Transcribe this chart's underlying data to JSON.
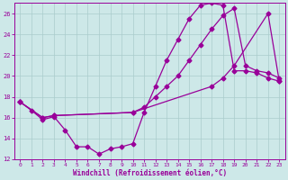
{
  "background_color": "#cde8e8",
  "grid_color": "#aacccc",
  "line_color": "#990099",
  "xlabel": "Windchill (Refroidissement éolien,°C)",
  "xlim": [
    -0.5,
    23.5
  ],
  "ylim": [
    12,
    27
  ],
  "xticks": [
    0,
    1,
    2,
    3,
    4,
    5,
    6,
    7,
    8,
    9,
    10,
    11,
    12,
    13,
    14,
    15,
    16,
    17,
    18,
    19,
    20,
    21,
    22,
    23
  ],
  "yticks": [
    12,
    14,
    16,
    18,
    20,
    22,
    24,
    26
  ],
  "line1_x": [
    0,
    1,
    2,
    3,
    4,
    5,
    6,
    7,
    8,
    9,
    10,
    11,
    12,
    13,
    14,
    15,
    16,
    17,
    18,
    19,
    20,
    21,
    22,
    23
  ],
  "line1_y": [
    17.5,
    16.7,
    15.8,
    16.1,
    14.8,
    13.2,
    13.2,
    12.5,
    13.0,
    13.2,
    13.5,
    16.5,
    19.0,
    21.5,
    23.5,
    25.5,
    26.8,
    27.0,
    26.8,
    20.5,
    20.5,
    20.3,
    19.8,
    19.5
  ],
  "line2_x": [
    0,
    2,
    3,
    10,
    11,
    12,
    13,
    14,
    15,
    16,
    17,
    18,
    19,
    20,
    21,
    22,
    23
  ],
  "line2_y": [
    17.5,
    16.0,
    16.2,
    16.5,
    17.0,
    18.0,
    19.0,
    20.0,
    21.5,
    23.0,
    24.5,
    25.8,
    26.5,
    21.0,
    20.5,
    20.3,
    19.8
  ],
  "line3_x": [
    0,
    2,
    3,
    10,
    17,
    18,
    19,
    22,
    23
  ],
  "line3_y": [
    17.5,
    16.0,
    16.2,
    16.5,
    19.0,
    19.8,
    21.0,
    26.0,
    19.5
  ]
}
